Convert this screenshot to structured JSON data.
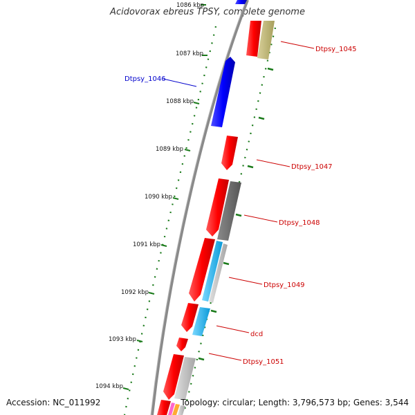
{
  "title": "Acidovorax ebreus TPSY, complete genome",
  "accession": "Accession: NC_011992",
  "topology_info": "Topology: circular; Length: 3,796,573 bp; Genes: 3,544",
  "ticks": [
    "1086 kbp",
    "1087 kbp",
    "1088 kbp",
    "1089 kbp",
    "1090 kbp",
    "1091 kbp",
    "1092 kbp",
    "1093 kbp",
    "1094 kbp"
  ],
  "labels": [
    {
      "text": "Dtpsy_1045",
      "color": "#cc0000"
    },
    {
      "text": "Dtpsy_1046",
      "color": "#0000cc"
    },
    {
      "text": "Dtpsy_1047",
      "color": "#cc0000"
    },
    {
      "text": "Dtpsy_1048",
      "color": "#cc0000"
    },
    {
      "text": "Dtpsy_1049",
      "color": "#cc0000"
    },
    {
      "text": "dcd",
      "color": "#cc0000"
    },
    {
      "text": "Dtpsy_1051",
      "color": "#cc0000"
    }
  ],
  "colors": {
    "forward_cds": "#ff0000",
    "reverse_cds": "#0000ff",
    "backbone": "#888888",
    "gc_skew": "#1a7a1a",
    "khaki": "#b5ad6a",
    "dark_gray": "#6d6d6d",
    "light_gray": "#b8b8b8",
    "cyan": "#1ab8f0",
    "pink": "#ff66cc",
    "orange": "#ffaa33"
  }
}
